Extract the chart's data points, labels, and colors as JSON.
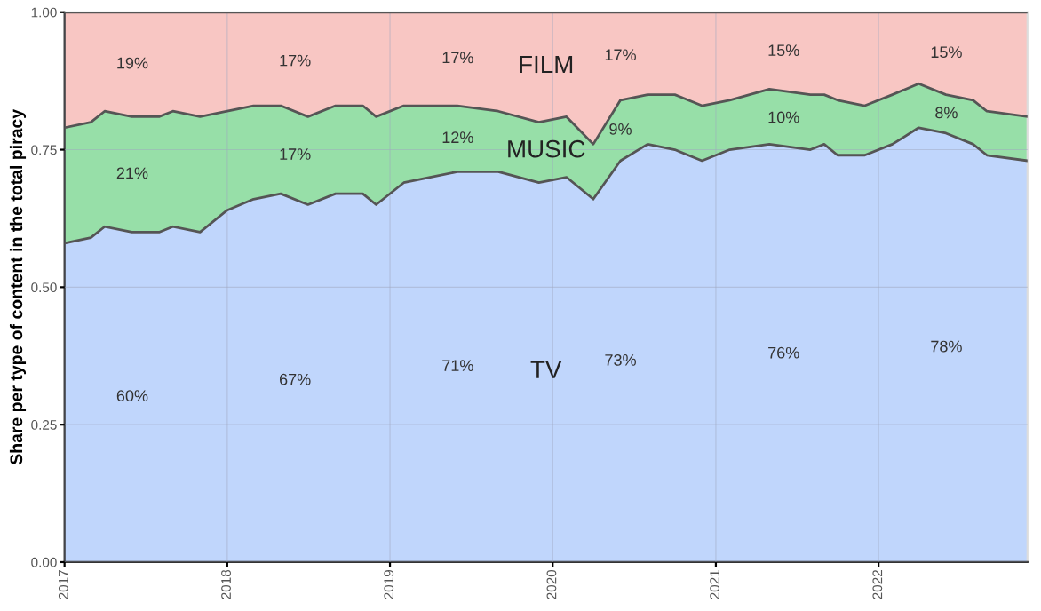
{
  "chart_data": {
    "type": "area",
    "stacked": true,
    "ylabel": "Share per type of content in the total piracy",
    "x": [
      "2017-01",
      "2017-03",
      "2017-04",
      "2017-06",
      "2017-08",
      "2017-09",
      "2017-11",
      "2018-01",
      "2018-03",
      "2018-05",
      "2018-07",
      "2018-09",
      "2018-11",
      "2018-12",
      "2019-02",
      "2019-04",
      "2019-06",
      "2019-09",
      "2019-12",
      "2020-02",
      "2020-04",
      "2020-06",
      "2020-08",
      "2020-10",
      "2020-12",
      "2021-02",
      "2021-05",
      "2021-08",
      "2021-09",
      "2021-10",
      "2021-12",
      "2022-02",
      "2022-04",
      "2022-06",
      "2022-08",
      "2022-09",
      "2022-12"
    ],
    "series": [
      {
        "name": "TV",
        "color": "#c0d6fc",
        "values": [
          0.58,
          0.59,
          0.61,
          0.6,
          0.6,
          0.61,
          0.6,
          0.64,
          0.66,
          0.67,
          0.65,
          0.67,
          0.67,
          0.65,
          0.69,
          0.7,
          0.71,
          0.71,
          0.69,
          0.7,
          0.66,
          0.73,
          0.76,
          0.75,
          0.73,
          0.75,
          0.76,
          0.75,
          0.76,
          0.74,
          0.74,
          0.76,
          0.79,
          0.78,
          0.76,
          0.74,
          0.73
        ]
      },
      {
        "name": "MUSIC",
        "color": "#97dfa8",
        "values": [
          0.21,
          0.21,
          0.21,
          0.21,
          0.21,
          0.21,
          0.21,
          0.18,
          0.17,
          0.16,
          0.16,
          0.16,
          0.16,
          0.16,
          0.14,
          0.13,
          0.12,
          0.11,
          0.11,
          0.11,
          0.1,
          0.11,
          0.09,
          0.1,
          0.1,
          0.09,
          0.1,
          0.1,
          0.09,
          0.1,
          0.09,
          0.09,
          0.08,
          0.07,
          0.08,
          0.08,
          0.08
        ]
      },
      {
        "name": "FILM",
        "color": "#f8c6c3",
        "values": [
          0.21,
          0.2,
          0.18,
          0.19,
          0.19,
          0.18,
          0.19,
          0.18,
          0.17,
          0.17,
          0.19,
          0.17,
          0.17,
          0.19,
          0.17,
          0.17,
          0.17,
          0.18,
          0.2,
          0.19,
          0.24,
          0.16,
          0.15,
          0.15,
          0.17,
          0.16,
          0.14,
          0.15,
          0.15,
          0.16,
          0.17,
          0.15,
          0.13,
          0.15,
          0.16,
          0.18,
          0.19
        ]
      }
    ],
    "xlim": [
      "2017-01",
      "2022-12"
    ],
    "xticks": [
      {
        "value": "2017-01",
        "label": "2017"
      },
      {
        "value": "2018-01",
        "label": "2018"
      },
      {
        "value": "2019-01",
        "label": "2019"
      },
      {
        "value": "2020-01",
        "label": "2020"
      },
      {
        "value": "2021-01",
        "label": "2021"
      },
      {
        "value": "2022-01",
        "label": "2022"
      }
    ],
    "ylim": [
      0,
      1
    ],
    "yticks": [
      {
        "value": 0,
        "label": "0.00"
      },
      {
        "value": 0.25,
        "label": "0.25"
      },
      {
        "value": 0.5,
        "label": "0.50"
      },
      {
        "value": 0.75,
        "label": "0.75"
      },
      {
        "value": 1,
        "label": "1.00"
      }
    ],
    "grid": true,
    "legend": false,
    "annotations": [
      "19%",
      "17%",
      "17%",
      "17%",
      "15%",
      "15%",
      "21%",
      "17%",
      "12%",
      "9%",
      "10%",
      "8%",
      "60%",
      "67%",
      "71%",
      "73%",
      "76%",
      "78%"
    ]
  }
}
